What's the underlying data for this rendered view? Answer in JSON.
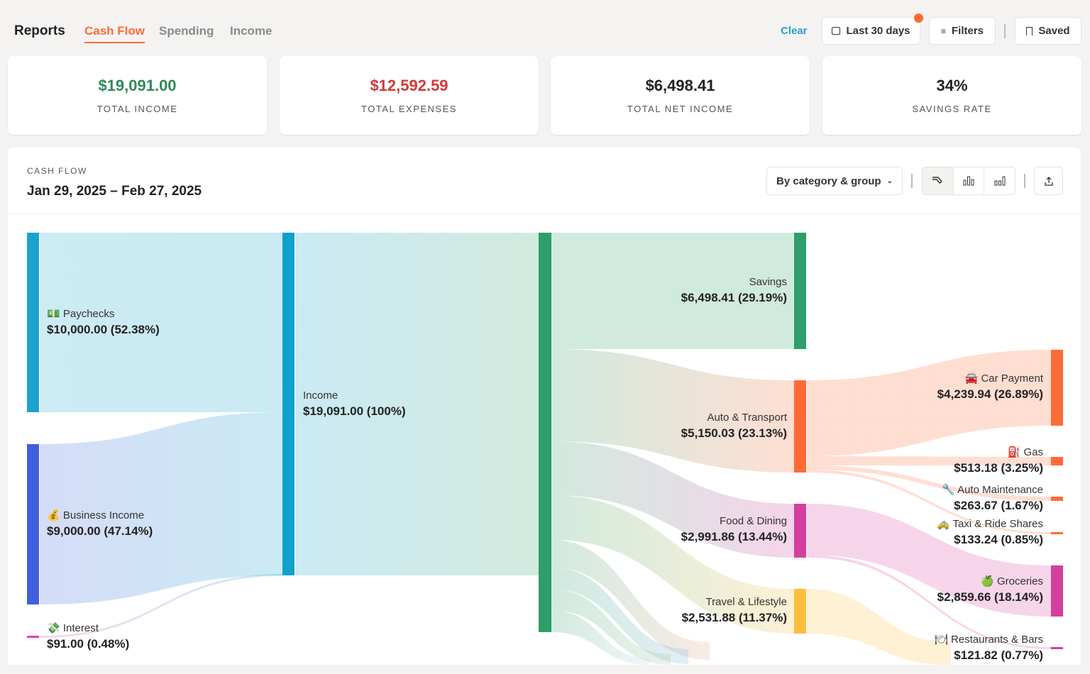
{
  "header": {
    "title": "Reports",
    "tabs": [
      {
        "label": "Cash Flow",
        "active": true
      },
      {
        "label": "Spending"
      },
      {
        "label": "Income"
      }
    ],
    "clear_label": "Clear",
    "date_button": "Last 30 days",
    "filters_button": "Filters",
    "saved_button": "Saved",
    "accent": "#ff6b35"
  },
  "summary": [
    {
      "value": "$19,091.00",
      "label": "TOTAL INCOME",
      "color": "#2e8a5a"
    },
    {
      "value": "$12,592.59",
      "label": "TOTAL EXPENSES",
      "color": "#d63838"
    },
    {
      "value": "$6,498.41",
      "label": "TOTAL NET INCOME",
      "color": "#222222"
    },
    {
      "value": "34%",
      "label": "SAVINGS RATE",
      "color": "#222222"
    }
  ],
  "panel": {
    "title": "CASH FLOW",
    "range": "Jan 29, 2025 – Feb 27, 2025",
    "group_select": "By category & group",
    "view_icons": [
      "sankey-icon",
      "bar-chart-icon",
      "stacked-bar-icon"
    ],
    "active_view": "sankey-icon",
    "export_icon": "share-icon"
  },
  "sankey": {
    "nodes": [
      {
        "id": "paychecks",
        "emoji": "💵",
        "name": "Paychecks",
        "amount": "$10,000.00 (52.38%)",
        "color": "#1aa3cf"
      },
      {
        "id": "business",
        "emoji": "💰",
        "name": "Business Income",
        "amount": "$9,000.00 (47.14%)",
        "color": "#3f5fdc"
      },
      {
        "id": "interest",
        "emoji": "💸",
        "name": "Interest",
        "amount": "$91.00 (0.48%)",
        "color": "#d946a8"
      },
      {
        "id": "income",
        "emoji": "",
        "name": "Income",
        "amount": "$19,091.00 (100%)",
        "color": "#10a0cc"
      },
      {
        "id": "cash",
        "emoji": "",
        "name": "",
        "amount": "",
        "color": "#2e9e6a"
      },
      {
        "id": "savings",
        "emoji": "",
        "name": "Savings",
        "amount": "$6,498.41 (29.19%)",
        "color": "#2e9e6a"
      },
      {
        "id": "auto",
        "emoji": "",
        "name": "Auto & Transport",
        "amount": "$5,150.03 (23.13%)",
        "color": "#ff6b35"
      },
      {
        "id": "food",
        "emoji": "",
        "name": "Food & Dining",
        "amount": "$2,991.86 (13.44%)",
        "color": "#d43f9e"
      },
      {
        "id": "travel",
        "emoji": "",
        "name": "Travel & Lifestyle",
        "amount": "$2,531.88 (11.37%)",
        "color": "#fbbf3c"
      },
      {
        "id": "car",
        "emoji": "🚘",
        "name": "Car Payment",
        "amount": "$4,239.94 (26.89%)",
        "color": "#ff6b35"
      },
      {
        "id": "gas",
        "emoji": "⛽",
        "name": "Gas",
        "amount": "$513.18 (3.25%)",
        "color": "#ff6b35"
      },
      {
        "id": "maint",
        "emoji": "🔧",
        "name": "Auto Maintenance",
        "amount": "$263.67 (1.67%)",
        "color": "#ff6b35"
      },
      {
        "id": "taxi",
        "emoji": "🚕",
        "name": "Taxi & Ride Shares",
        "amount": "$133.24 (0.85%)",
        "color": "#ff6b35"
      },
      {
        "id": "groceries",
        "emoji": "🍏",
        "name": "Groceries",
        "amount": "$2,859.66 (18.14%)",
        "color": "#d43f9e"
      },
      {
        "id": "restaurants",
        "emoji": "🍽",
        "name": "Restaurants & Bars",
        "amount": "$121.82 (0.77%)",
        "color": "#d43f9e"
      }
    ]
  }
}
